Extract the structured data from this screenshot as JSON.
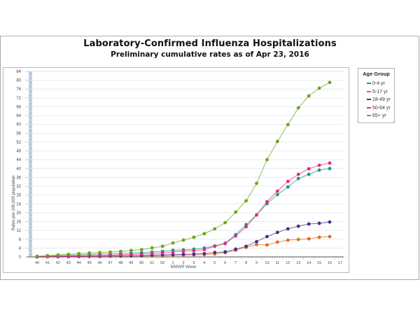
{
  "chart_data": {
    "type": "line",
    "title": "Laboratory-Confirmed Influenza Hospitalizations",
    "subtitle": "Preliminary cumulative rates as of Apr 23, 2016",
    "xlabel": "MMWR Week",
    "ylabel": "Rates per 100,000 population",
    "ylim": [
      0,
      84
    ],
    "yticks": [
      0,
      4,
      8,
      12,
      16,
      20,
      24,
      28,
      32,
      36,
      40,
      44,
      48,
      52,
      56,
      60,
      64,
      68,
      72,
      76,
      80,
      84
    ],
    "categories": [
      "40",
      "41",
      "42",
      "43",
      "44",
      "45",
      "46",
      "47",
      "48",
      "49",
      "50",
      "51",
      "52",
      "1",
      "2",
      "3",
      "4",
      "5",
      "6",
      "7",
      "8",
      "9",
      "10",
      "11",
      "12",
      "13",
      "14",
      "15",
      "16",
      "17"
    ],
    "grid": true,
    "legend_position": "right",
    "legend_title": "Age Group",
    "series": [
      {
        "name": "0-4 yr",
        "color": "#1a9b7a",
        "values": [
          0.1,
          0.3,
          0.5,
          0.7,
          0.9,
          1.1,
          1.3,
          1.4,
          1.6,
          1.7,
          1.9,
          2.2,
          2.5,
          3.0,
          3.2,
          3.5,
          4.0,
          5.0,
          6.2,
          10.1,
          14.6,
          19.0,
          24.1,
          28.2,
          31.7,
          35.5,
          37.4,
          39.3,
          40.0,
          null
        ]
      },
      {
        "name": "5-17 yr",
        "color": "#e8691b",
        "values": [
          0.0,
          0.1,
          0.1,
          0.1,
          0.2,
          0.2,
          0.2,
          0.3,
          0.3,
          0.4,
          0.4,
          0.5,
          0.6,
          0.7,
          0.8,
          0.9,
          1.0,
          1.3,
          1.9,
          3.0,
          4.3,
          5.6,
          5.4,
          6.7,
          7.6,
          7.9,
          8.2,
          8.9,
          9.2,
          null
        ]
      },
      {
        "name": "18-49 yr",
        "color": "#4b2a8c",
        "values": [
          0.0,
          0.1,
          0.1,
          0.2,
          0.2,
          0.3,
          0.3,
          0.4,
          0.5,
          0.5,
          0.6,
          0.8,
          0.9,
          1.0,
          1.2,
          1.3,
          1.5,
          2.0,
          2.3,
          3.5,
          4.8,
          6.9,
          9.2,
          11.1,
          12.7,
          13.9,
          14.9,
          15.2,
          15.8,
          null
        ]
      },
      {
        "name": "50-64 yr",
        "color": "#e8288a",
        "values": [
          0.1,
          0.2,
          0.3,
          0.4,
          0.5,
          0.6,
          0.7,
          0.8,
          1.0,
          1.1,
          1.3,
          1.5,
          1.8,
          2.2,
          2.5,
          2.8,
          3.3,
          4.8,
          6.0,
          9.5,
          13.6,
          19.0,
          25.0,
          29.8,
          34.2,
          37.4,
          39.9,
          41.5,
          42.5,
          null
        ]
      },
      {
        "name": "65+ yr",
        "color": "#6aa51a",
        "values": [
          0.3,
          0.6,
          0.9,
          1.2,
          1.5,
          1.8,
          2.0,
          2.2,
          2.5,
          2.9,
          3.3,
          4.1,
          4.8,
          6.3,
          7.6,
          8.9,
          10.5,
          12.7,
          15.5,
          20.3,
          25.4,
          33.3,
          44.0,
          52.3,
          59.9,
          67.5,
          72.9,
          76.4,
          79.0,
          null
        ]
      }
    ]
  }
}
